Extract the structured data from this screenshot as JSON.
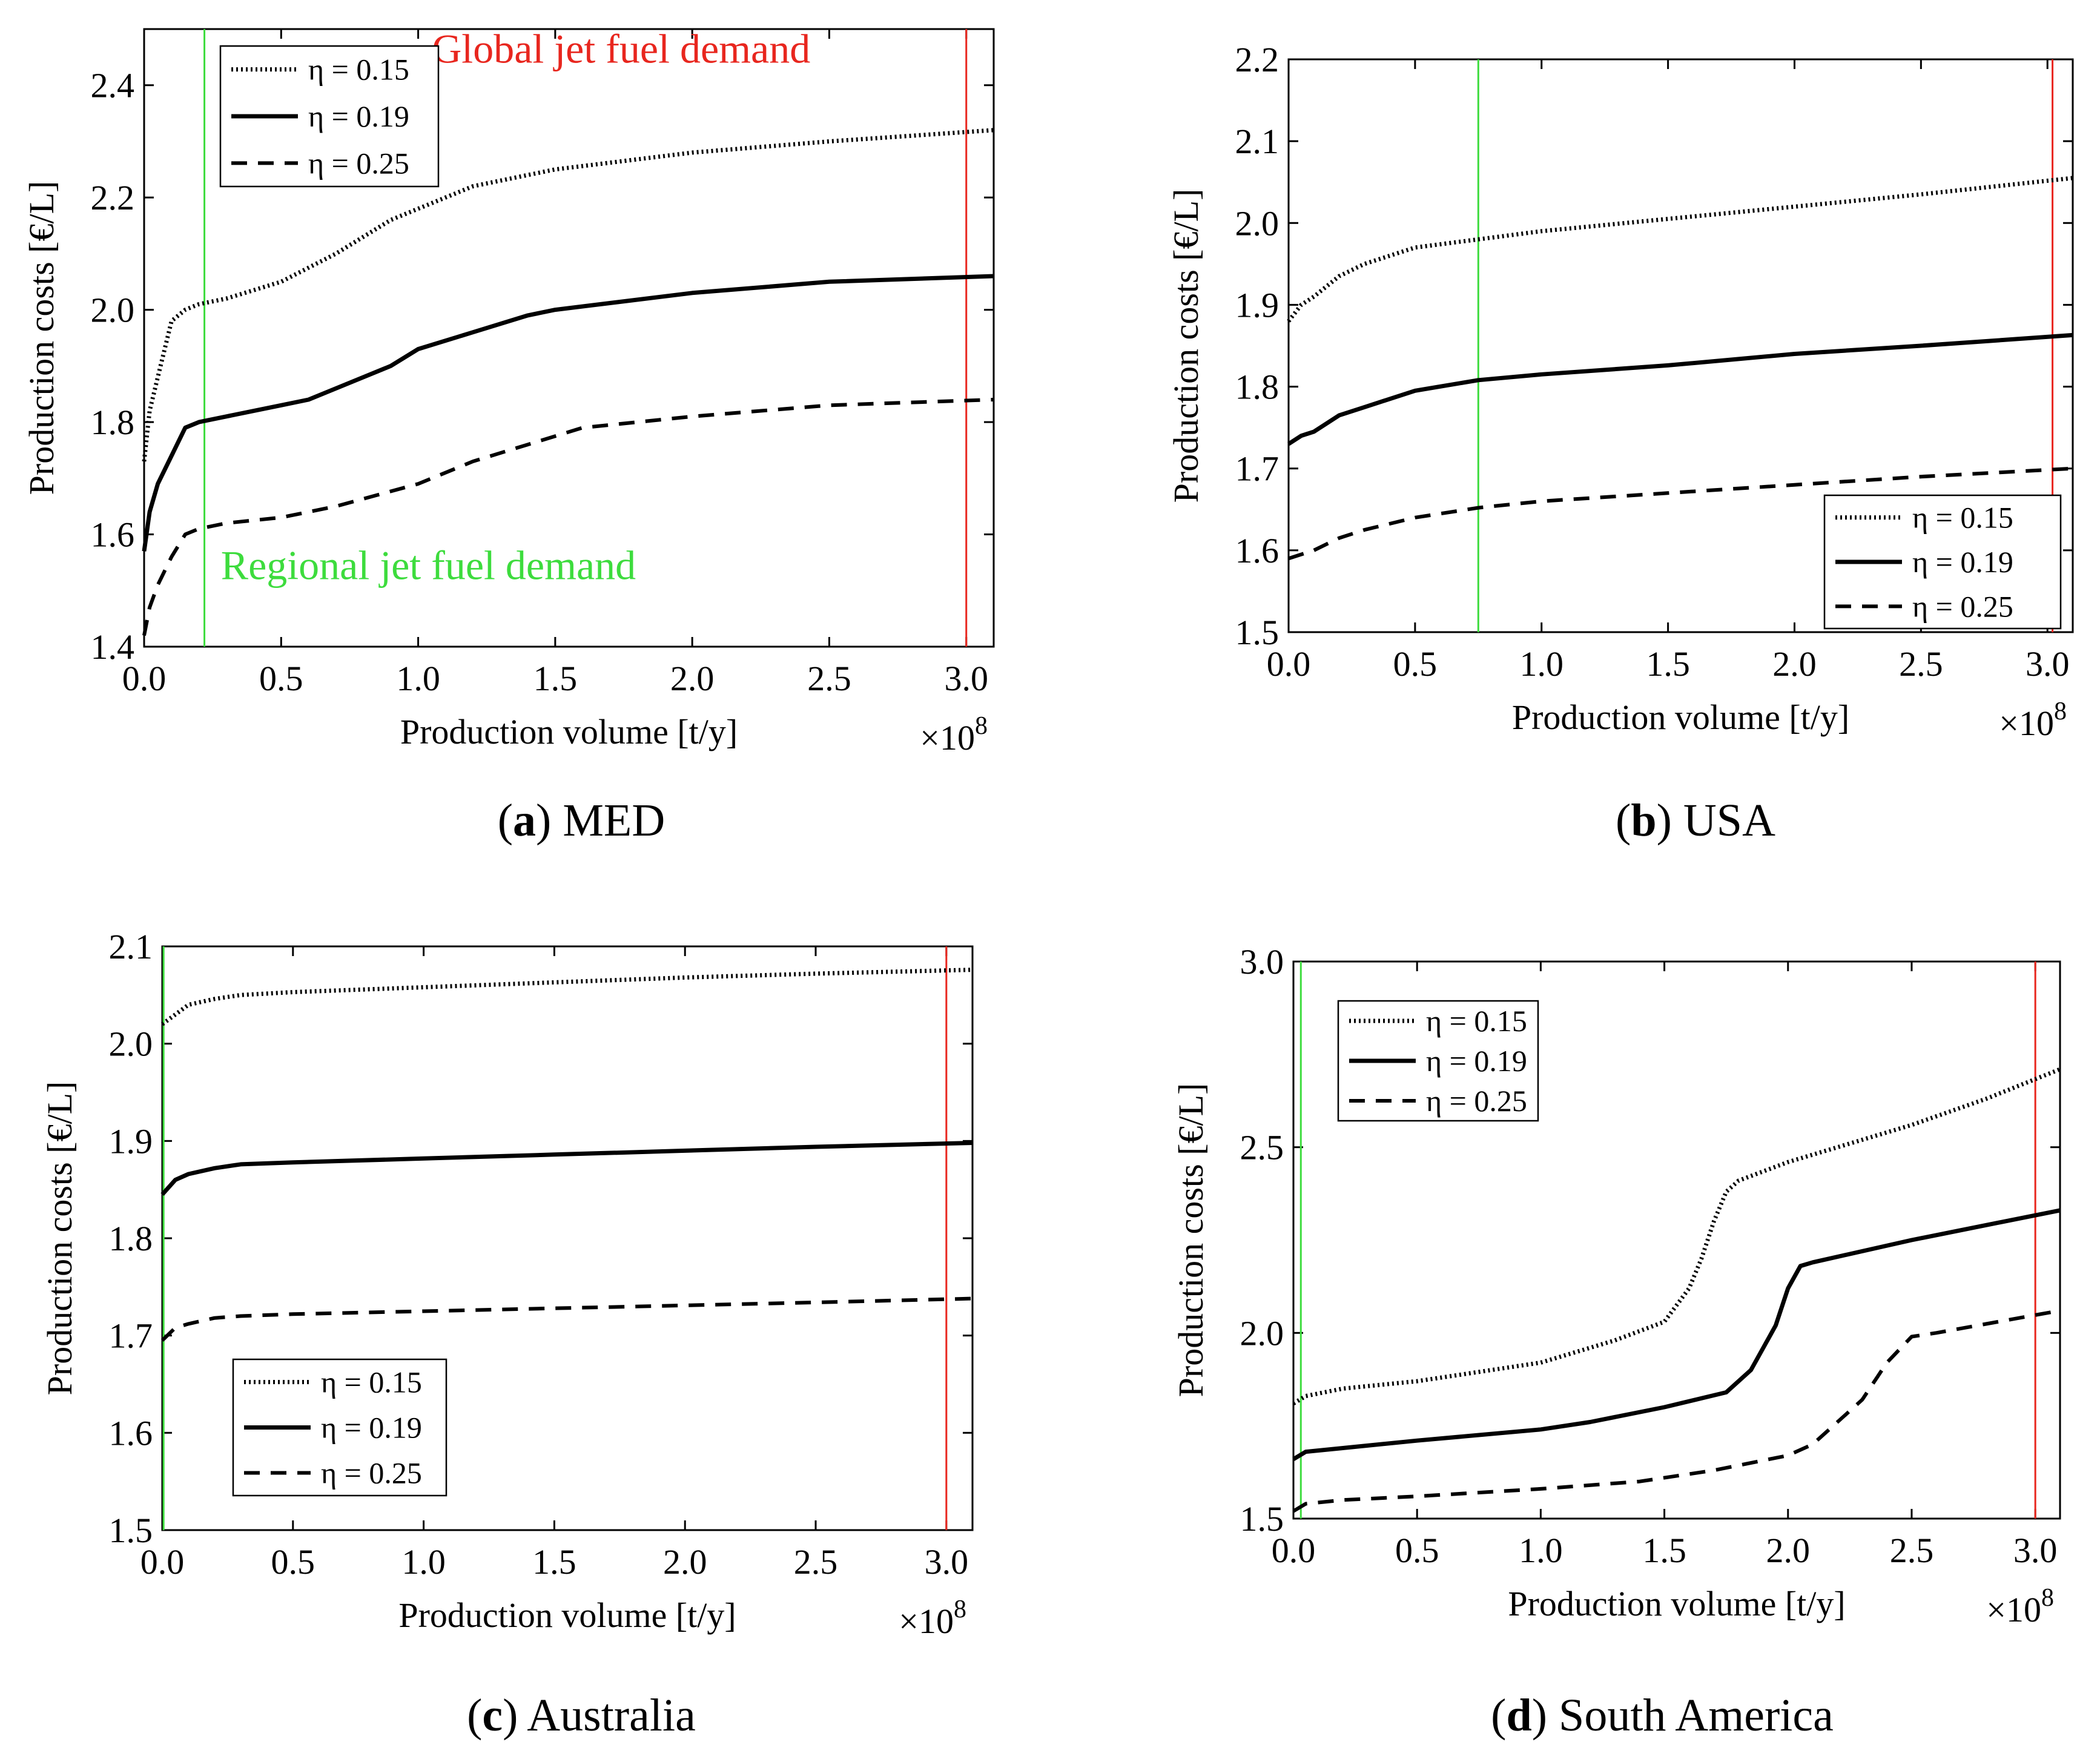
{
  "chart_data": [
    {
      "type": "line",
      "caption_letter": "a",
      "caption_text": "MED",
      "xlabel": "Production volume [t/y]",
      "ylabel": "Production costs [€/L]",
      "x_multiplier_base": "×10",
      "x_multiplier_exp": "8",
      "xlim": [
        0,
        3.1
      ],
      "ylim": [
        1.4,
        2.5
      ],
      "xticks": [
        "0.0",
        "0.5",
        "1.0",
        "1.5",
        "2.0",
        "2.5",
        "3.0"
      ],
      "yticks": [
        "1.4",
        "1.6",
        "1.8",
        "2.0",
        "2.2",
        "2.4"
      ],
      "legend_position": "top-left",
      "series": [
        {
          "name": "η = 0.15",
          "style": "dotted",
          "x": [
            0,
            0.02,
            0.05,
            0.1,
            0.15,
            0.2,
            0.3,
            0.5,
            0.7,
            0.9,
            1.2,
            1.5,
            2.0,
            2.5,
            3.1
          ],
          "y": [
            1.73,
            1.82,
            1.88,
            1.98,
            2.0,
            2.01,
            2.02,
            2.05,
            2.1,
            2.16,
            2.22,
            2.25,
            2.28,
            2.3,
            2.32
          ]
        },
        {
          "name": "η = 0.19",
          "style": "solid",
          "x": [
            0,
            0.02,
            0.05,
            0.1,
            0.15,
            0.2,
            0.3,
            0.5,
            0.6,
            0.9,
            1.0,
            1.2,
            1.4,
            1.5,
            2.0,
            2.5,
            3.1
          ],
          "y": [
            1.57,
            1.64,
            1.69,
            1.74,
            1.79,
            1.8,
            1.81,
            1.83,
            1.84,
            1.9,
            1.93,
            1.96,
            1.99,
            2.0,
            2.03,
            2.05,
            2.06
          ]
        },
        {
          "name": "η = 0.25",
          "style": "dashed",
          "x": [
            0,
            0.02,
            0.05,
            0.1,
            0.15,
            0.2,
            0.3,
            0.5,
            0.7,
            1.0,
            1.2,
            1.4,
            1.6,
            2.0,
            2.5,
            3.1
          ],
          "y": [
            1.42,
            1.47,
            1.51,
            1.56,
            1.6,
            1.61,
            1.62,
            1.63,
            1.65,
            1.69,
            1.73,
            1.76,
            1.79,
            1.81,
            1.83,
            1.84
          ]
        }
      ],
      "vlines": [
        {
          "x": 0.22,
          "color": "#3ddc3d"
        },
        {
          "x": 3.0,
          "color": "#e8261e"
        }
      ],
      "annotations": [
        {
          "text": "Global jet fuel demand",
          "color": "#e8261e",
          "x": 1.05,
          "y": 2.44
        },
        {
          "text": "Regional jet fuel demand",
          "color": "#3ddc3d",
          "x": 0.28,
          "y": 1.52
        }
      ]
    },
    {
      "type": "line",
      "caption_letter": "b",
      "caption_text": "USA",
      "xlabel": "Production volume [t/y]",
      "ylabel": "Production costs [€/L]",
      "x_multiplier_base": "×10",
      "x_multiplier_exp": "8",
      "xlim": [
        0,
        3.1
      ],
      "ylim": [
        1.5,
        2.2
      ],
      "xticks": [
        "0.0",
        "0.5",
        "1.0",
        "1.5",
        "2.0",
        "2.5",
        "3.0"
      ],
      "yticks": [
        "1.5",
        "1.6",
        "1.7",
        "1.8",
        "1.9",
        "2.0",
        "2.1",
        "2.2"
      ],
      "legend_position": "bottom-right",
      "series": [
        {
          "name": "η = 0.15",
          "style": "dotted",
          "x": [
            0,
            0.05,
            0.1,
            0.2,
            0.3,
            0.5,
            0.75,
            1.0,
            1.5,
            2.0,
            2.5,
            3.1
          ],
          "y": [
            1.88,
            1.9,
            1.91,
            1.935,
            1.95,
            1.97,
            1.98,
            1.99,
            2.005,
            2.02,
            2.035,
            2.055
          ]
        },
        {
          "name": "η = 0.19",
          "style": "solid",
          "x": [
            0,
            0.05,
            0.1,
            0.2,
            0.3,
            0.5,
            0.75,
            1.0,
            1.5,
            2.0,
            2.5,
            3.1
          ],
          "y": [
            1.73,
            1.74,
            1.745,
            1.765,
            1.775,
            1.795,
            1.808,
            1.815,
            1.826,
            1.84,
            1.85,
            1.863
          ]
        },
        {
          "name": "η = 0.25",
          "style": "dashed",
          "x": [
            0,
            0.05,
            0.1,
            0.2,
            0.3,
            0.5,
            0.75,
            1.0,
            1.5,
            2.0,
            2.5,
            3.1
          ],
          "y": [
            1.59,
            1.595,
            1.6,
            1.615,
            1.625,
            1.64,
            1.652,
            1.66,
            1.67,
            1.68,
            1.69,
            1.7
          ]
        }
      ],
      "vlines": [
        {
          "x": 0.75,
          "color": "#3ddc3d"
        },
        {
          "x": 3.02,
          "color": "#e8261e"
        }
      ],
      "annotations": []
    },
    {
      "type": "line",
      "caption_letter": "c",
      "caption_text": "Australia",
      "xlabel": "Production volume [t/y]",
      "ylabel": "Production costs [€/L]",
      "x_multiplier_base": "×10",
      "x_multiplier_exp": "8",
      "xlim": [
        0,
        3.1
      ],
      "ylim": [
        1.5,
        2.1
      ],
      "xticks": [
        "0.0",
        "0.5",
        "1.0",
        "1.5",
        "2.0",
        "2.5",
        "3.0"
      ],
      "yticks": [
        "1.5",
        "1.6",
        "1.7",
        "1.8",
        "1.9",
        "2.0",
        "2.1"
      ],
      "legend_position": "bottom-left",
      "series": [
        {
          "name": "η = 0.15",
          "style": "dotted",
          "x": [
            0,
            0.05,
            0.1,
            0.2,
            0.3,
            0.5,
            1.0,
            1.5,
            2.0,
            2.5,
            3.1
          ],
          "y": [
            2.02,
            2.03,
            2.04,
            2.046,
            2.05,
            2.053,
            2.058,
            2.063,
            2.068,
            2.072,
            2.076
          ]
        },
        {
          "name": "η = 0.19",
          "style": "solid",
          "x": [
            0,
            0.05,
            0.1,
            0.2,
            0.3,
            0.5,
            1.0,
            1.5,
            2.0,
            2.5,
            3.1
          ],
          "y": [
            1.845,
            1.86,
            1.866,
            1.872,
            1.876,
            1.878,
            1.882,
            1.886,
            1.89,
            1.894,
            1.898
          ]
        },
        {
          "name": "η = 0.25",
          "style": "dashed",
          "x": [
            0,
            0.05,
            0.1,
            0.2,
            0.3,
            0.5,
            1.0,
            1.5,
            2.0,
            2.5,
            3.1
          ],
          "y": [
            1.695,
            1.708,
            1.712,
            1.718,
            1.72,
            1.722,
            1.725,
            1.728,
            1.731,
            1.734,
            1.738
          ]
        }
      ],
      "vlines": [
        {
          "x": 0.005,
          "color": "#3ddc3d"
        },
        {
          "x": 3.0,
          "color": "#e8261e"
        }
      ],
      "annotations": []
    },
    {
      "type": "line",
      "caption_letter": "d",
      "caption_text": "South America",
      "xlabel": "Production volume [t/y]",
      "ylabel": "Production costs [€/L]",
      "x_multiplier_base": "×10",
      "x_multiplier_exp": "8",
      "xlim": [
        0,
        3.1
      ],
      "ylim": [
        1.5,
        3.0
      ],
      "xticks": [
        "0.0",
        "0.5",
        "1.0",
        "1.5",
        "2.0",
        "2.5",
        "3.0"
      ],
      "yticks": [
        "1.5",
        "2.0",
        "2.5",
        "3.0"
      ],
      "legend_position": "top-left",
      "series": [
        {
          "name": "η = 0.15",
          "style": "dotted",
          "x": [
            0,
            0.05,
            0.2,
            0.5,
            1.0,
            1.3,
            1.5,
            1.6,
            1.65,
            1.7,
            1.75,
            1.8,
            2.0,
            2.5,
            2.8,
            3.1
          ],
          "y": [
            1.81,
            1.83,
            1.85,
            1.87,
            1.92,
            1.98,
            2.03,
            2.12,
            2.2,
            2.3,
            2.38,
            2.41,
            2.46,
            2.56,
            2.63,
            2.71
          ]
        },
        {
          "name": "η = 0.19",
          "style": "solid",
          "x": [
            0,
            0.05,
            0.2,
            0.5,
            1.0,
            1.2,
            1.5,
            1.75,
            1.85,
            1.95,
            2.0,
            2.05,
            2.1,
            2.5,
            3.1
          ],
          "y": [
            1.66,
            1.68,
            1.69,
            1.71,
            1.74,
            1.76,
            1.8,
            1.84,
            1.9,
            2.02,
            2.12,
            2.18,
            2.19,
            2.25,
            2.33
          ]
        },
        {
          "name": "η = 0.25",
          "style": "dashed",
          "x": [
            0,
            0.05,
            0.2,
            0.5,
            1.0,
            1.4,
            1.7,
            2.0,
            2.1,
            2.3,
            2.4,
            2.5,
            2.6,
            3.1
          ],
          "y": [
            1.52,
            1.54,
            1.55,
            1.56,
            1.58,
            1.6,
            1.63,
            1.67,
            1.7,
            1.82,
            1.92,
            1.99,
            2.0,
            2.06
          ]
        }
      ],
      "vlines": [
        {
          "x": 0.03,
          "color": "#3ddc3d"
        },
        {
          "x": 3.0,
          "color": "#e8261e"
        }
      ],
      "annotations": []
    }
  ]
}
